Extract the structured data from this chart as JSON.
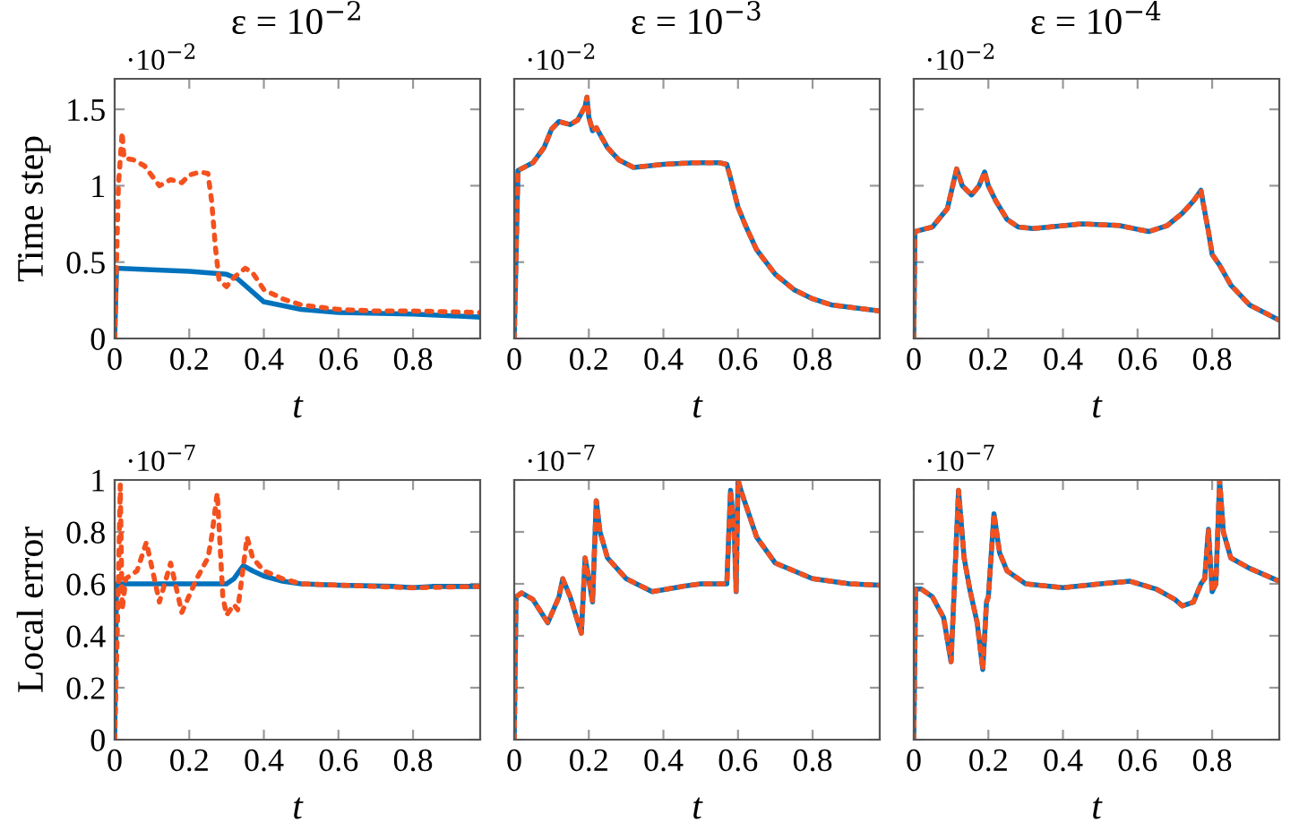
{
  "chart_data": [
    {
      "type": "line",
      "title": "ε = 10$^{−2}$",
      "ylabel": "Time step",
      "xlabel": "t",
      "annotations": [
        "·10$^{−2}$"
      ],
      "xlim": [
        0,
        0.98
      ],
      "xticks": [
        0,
        0.2,
        0.4,
        0.6,
        0.8
      ],
      "ylim": [
        0,
        1.7
      ],
      "yticks": [
        0,
        0.5,
        1,
        1.5
      ],
      "series": [
        {
          "color": "#0072bd",
          "line_style": "solid",
          "x": [
            0,
            0.005,
            0.1,
            0.2,
            0.3,
            0.33,
            0.4,
            0.5,
            0.6,
            0.8,
            0.98
          ],
          "values": [
            0,
            0.46,
            0.45,
            0.44,
            0.42,
            0.39,
            0.24,
            0.19,
            0.17,
            0.16,
            0.14
          ]
        },
        {
          "color": "#f4511e",
          "line_style": "dotted",
          "x": [
            0,
            0.01,
            0.02,
            0.025,
            0.05,
            0.08,
            0.12,
            0.15,
            0.18,
            0.2,
            0.23,
            0.25,
            0.26,
            0.27,
            0.28,
            0.3,
            0.32,
            0.35,
            0.37,
            0.4,
            0.45,
            0.5,
            0.6,
            0.7,
            0.8,
            0.98
          ],
          "values": [
            0,
            1.0,
            1.35,
            1.18,
            1.17,
            1.13,
            1.0,
            1.04,
            1.02,
            1.07,
            1.09,
            1.08,
            0.9,
            0.6,
            0.38,
            0.34,
            0.4,
            0.46,
            0.43,
            0.32,
            0.26,
            0.22,
            0.19,
            0.18,
            0.18,
            0.17
          ]
        }
      ]
    },
    {
      "type": "line",
      "title": "ε = 10$^{−3}$",
      "xlabel": "t",
      "annotations": [
        "·10$^{−2}$"
      ],
      "xlim": [
        0,
        0.98
      ],
      "xticks": [
        0,
        0.2,
        0.4,
        0.6,
        0.8
      ],
      "ylim": [
        0,
        1.7
      ],
      "yticks": [
        0,
        0.5,
        1,
        1.5
      ],
      "tick_labels": "x",
      "series": [
        {
          "color": "#0072bd",
          "line_style": "solid",
          "x": [
            0,
            0.01,
            0.05,
            0.08,
            0.1,
            0.12,
            0.15,
            0.17,
            0.19,
            0.195,
            0.2,
            0.21,
            0.22,
            0.25,
            0.28,
            0.32,
            0.4,
            0.48,
            0.55,
            0.57,
            0.58,
            0.6,
            0.62,
            0.65,
            0.7,
            0.75,
            0.8,
            0.85,
            0.98
          ],
          "values": [
            0,
            1.1,
            1.15,
            1.25,
            1.37,
            1.42,
            1.4,
            1.43,
            1.52,
            1.58,
            1.45,
            1.36,
            1.38,
            1.25,
            1.17,
            1.12,
            1.14,
            1.15,
            1.15,
            1.14,
            1.05,
            0.86,
            0.74,
            0.58,
            0.42,
            0.32,
            0.26,
            0.22,
            0.18
          ]
        },
        {
          "color": "#f4511e",
          "line_style": "dotted",
          "x": [
            0,
            0.01,
            0.05,
            0.08,
            0.1,
            0.12,
            0.15,
            0.17,
            0.19,
            0.195,
            0.2,
            0.21,
            0.22,
            0.25,
            0.28,
            0.32,
            0.4,
            0.48,
            0.55,
            0.57,
            0.58,
            0.6,
            0.62,
            0.65,
            0.7,
            0.75,
            0.8,
            0.85,
            0.98
          ],
          "values": [
            0,
            1.1,
            1.15,
            1.25,
            1.37,
            1.42,
            1.4,
            1.43,
            1.52,
            1.58,
            1.45,
            1.36,
            1.38,
            1.25,
            1.17,
            1.12,
            1.14,
            1.15,
            1.15,
            1.14,
            1.05,
            0.86,
            0.74,
            0.58,
            0.42,
            0.32,
            0.26,
            0.22,
            0.18
          ]
        }
      ]
    },
    {
      "type": "line",
      "title": "ε = 10$^{−4}$",
      "xlabel": "t",
      "annotations": [
        "·10$^{−2}$"
      ],
      "xlim": [
        0,
        0.98
      ],
      "xticks": [
        0,
        0.2,
        0.4,
        0.6,
        0.8
      ],
      "ylim": [
        0,
        1.7
      ],
      "yticks": [
        0,
        0.5,
        1,
        1.5
      ],
      "tick_labels": "x",
      "series": [
        {
          "color": "#0072bd",
          "line_style": "solid",
          "x": [
            0,
            0.003,
            0.05,
            0.09,
            0.115,
            0.13,
            0.155,
            0.175,
            0.19,
            0.2,
            0.22,
            0.25,
            0.28,
            0.32,
            0.45,
            0.55,
            0.63,
            0.68,
            0.72,
            0.75,
            0.77,
            0.775,
            0.79,
            0.8,
            0.82,
            0.85,
            0.9,
            0.98
          ],
          "values": [
            0,
            0.7,
            0.73,
            0.85,
            1.11,
            1.0,
            0.94,
            1.0,
            1.09,
            1.0,
            0.9,
            0.78,
            0.73,
            0.72,
            0.75,
            0.74,
            0.7,
            0.74,
            0.82,
            0.9,
            0.97,
            0.9,
            0.7,
            0.55,
            0.48,
            0.35,
            0.22,
            0.12
          ]
        },
        {
          "color": "#f4511e",
          "line_style": "dotted",
          "x": [
            0,
            0.003,
            0.05,
            0.09,
            0.115,
            0.13,
            0.155,
            0.175,
            0.19,
            0.2,
            0.22,
            0.25,
            0.28,
            0.32,
            0.45,
            0.55,
            0.63,
            0.68,
            0.72,
            0.75,
            0.77,
            0.775,
            0.79,
            0.8,
            0.82,
            0.85,
            0.9,
            0.98
          ],
          "values": [
            0,
            0.7,
            0.73,
            0.85,
            1.11,
            1.0,
            0.94,
            1.0,
            1.09,
            1.0,
            0.9,
            0.78,
            0.73,
            0.72,
            0.75,
            0.74,
            0.7,
            0.74,
            0.82,
            0.9,
            0.97,
            0.9,
            0.7,
            0.55,
            0.48,
            0.35,
            0.22,
            0.12
          ]
        }
      ]
    },
    {
      "type": "line",
      "ylabel": "Local error",
      "xlabel": "t",
      "annotations": [
        "·10$^{−7}$"
      ],
      "xlim": [
        0,
        0.98
      ],
      "xticks": [
        0,
        0.2,
        0.4,
        0.6,
        0.8
      ],
      "ylim": [
        0,
        1
      ],
      "yticks": [
        0,
        0.2,
        0.4,
        0.6,
        0.8,
        1
      ],
      "series": [
        {
          "color": "#0072bd",
          "line_style": "solid",
          "x": [
            0,
            0.005,
            0.3,
            0.32,
            0.345,
            0.37,
            0.4,
            0.45,
            0.5,
            0.6,
            0.75,
            0.8,
            0.85,
            0.98
          ],
          "values": [
            0,
            0.6,
            0.6,
            0.62,
            0.67,
            0.65,
            0.63,
            0.61,
            0.6,
            0.595,
            0.59,
            0.585,
            0.59,
            0.59
          ]
        },
        {
          "color": "#f4511e",
          "line_style": "dotted",
          "x": [
            0,
            0.01,
            0.015,
            0.02,
            0.03,
            0.06,
            0.085,
            0.12,
            0.15,
            0.18,
            0.22,
            0.25,
            0.26,
            0.275,
            0.29,
            0.3,
            0.32,
            0.33,
            0.355,
            0.37,
            0.4,
            0.45,
            0.5,
            0.6,
            0.7,
            0.8,
            0.98
          ],
          "values": [
            0,
            0.6,
            0.98,
            0.5,
            0.62,
            0.65,
            0.76,
            0.53,
            0.68,
            0.49,
            0.62,
            0.7,
            0.78,
            0.95,
            0.55,
            0.48,
            0.52,
            0.5,
            0.78,
            0.7,
            0.65,
            0.62,
            0.6,
            0.595,
            0.59,
            0.585,
            0.59
          ]
        }
      ]
    },
    {
      "type": "line",
      "xlabel": "t",
      "annotations": [
        "·10$^{−7}$"
      ],
      "xlim": [
        0,
        0.98
      ],
      "xticks": [
        0,
        0.2,
        0.4,
        0.6,
        0.8
      ],
      "ylim": [
        0,
        1
      ],
      "yticks": [
        0,
        0.2,
        0.4,
        0.6,
        0.8,
        1
      ],
      "tick_labels": "x",
      "series": [
        {
          "color": "#0072bd",
          "line_style": "solid",
          "x": [
            0,
            0.005,
            0.02,
            0.05,
            0.09,
            0.12,
            0.13,
            0.15,
            0.18,
            0.19,
            0.2,
            0.21,
            0.22,
            0.23,
            0.25,
            0.3,
            0.37,
            0.45,
            0.5,
            0.57,
            0.58,
            0.59,
            0.595,
            0.6,
            0.61,
            0.65,
            0.7,
            0.8,
            0.9,
            0.98
          ],
          "values": [
            0,
            0.55,
            0.565,
            0.54,
            0.45,
            0.55,
            0.62,
            0.55,
            0.41,
            0.7,
            0.62,
            0.53,
            0.92,
            0.8,
            0.7,
            0.62,
            0.57,
            0.59,
            0.6,
            0.6,
            0.96,
            0.8,
            0.57,
            1.0,
            0.95,
            0.78,
            0.68,
            0.62,
            0.6,
            0.595
          ]
        },
        {
          "color": "#f4511e",
          "line_style": "dotted",
          "x": [
            0,
            0.005,
            0.02,
            0.05,
            0.09,
            0.12,
            0.13,
            0.15,
            0.18,
            0.19,
            0.2,
            0.21,
            0.22,
            0.23,
            0.25,
            0.3,
            0.37,
            0.45,
            0.5,
            0.57,
            0.58,
            0.59,
            0.595,
            0.6,
            0.61,
            0.65,
            0.7,
            0.8,
            0.9,
            0.98
          ],
          "values": [
            0,
            0.55,
            0.565,
            0.54,
            0.45,
            0.55,
            0.62,
            0.55,
            0.41,
            0.7,
            0.62,
            0.53,
            0.92,
            0.8,
            0.7,
            0.62,
            0.57,
            0.59,
            0.6,
            0.6,
            0.96,
            0.8,
            0.57,
            1.0,
            0.95,
            0.78,
            0.68,
            0.62,
            0.6,
            0.595
          ]
        }
      ]
    },
    {
      "type": "line",
      "xlabel": "t",
      "annotations": [
        "·10$^{−7}$"
      ],
      "xlim": [
        0,
        0.98
      ],
      "xticks": [
        0,
        0.2,
        0.4,
        0.6,
        0.8
      ],
      "ylim": [
        0,
        1
      ],
      "yticks": [
        0,
        0.2,
        0.4,
        0.6,
        0.8,
        1
      ],
      "tick_labels": "x",
      "series": [
        {
          "color": "#0072bd",
          "line_style": "solid",
          "x": [
            0,
            0.005,
            0.02,
            0.05,
            0.08,
            0.1,
            0.12,
            0.135,
            0.15,
            0.17,
            0.185,
            0.195,
            0.2,
            0.215,
            0.23,
            0.25,
            0.3,
            0.4,
            0.5,
            0.58,
            0.65,
            0.7,
            0.72,
            0.75,
            0.77,
            0.78,
            0.79,
            0.8,
            0.81,
            0.82,
            0.83,
            0.85,
            0.9,
            0.98
          ],
          "values": [
            0,
            0.58,
            0.58,
            0.55,
            0.47,
            0.3,
            0.96,
            0.7,
            0.58,
            0.45,
            0.27,
            0.53,
            0.55,
            0.87,
            0.72,
            0.65,
            0.6,
            0.585,
            0.6,
            0.61,
            0.58,
            0.54,
            0.515,
            0.53,
            0.6,
            0.62,
            0.81,
            0.57,
            0.6,
            1.0,
            0.8,
            0.7,
            0.66,
            0.61
          ]
        },
        {
          "color": "#f4511e",
          "line_style": "dotted",
          "x": [
            0,
            0.005,
            0.02,
            0.05,
            0.08,
            0.1,
            0.12,
            0.135,
            0.15,
            0.17,
            0.185,
            0.195,
            0.2,
            0.215,
            0.23,
            0.25,
            0.3,
            0.4,
            0.5,
            0.58,
            0.65,
            0.7,
            0.72,
            0.75,
            0.77,
            0.78,
            0.79,
            0.8,
            0.81,
            0.82,
            0.83,
            0.85,
            0.9,
            0.98
          ],
          "values": [
            0,
            0.58,
            0.58,
            0.55,
            0.47,
            0.3,
            0.96,
            0.7,
            0.58,
            0.45,
            0.27,
            0.53,
            0.55,
            0.87,
            0.72,
            0.65,
            0.6,
            0.585,
            0.6,
            0.61,
            0.58,
            0.54,
            0.515,
            0.53,
            0.6,
            0.62,
            0.81,
            0.57,
            0.6,
            1.0,
            0.8,
            0.7,
            0.66,
            0.61
          ]
        }
      ]
    }
  ]
}
